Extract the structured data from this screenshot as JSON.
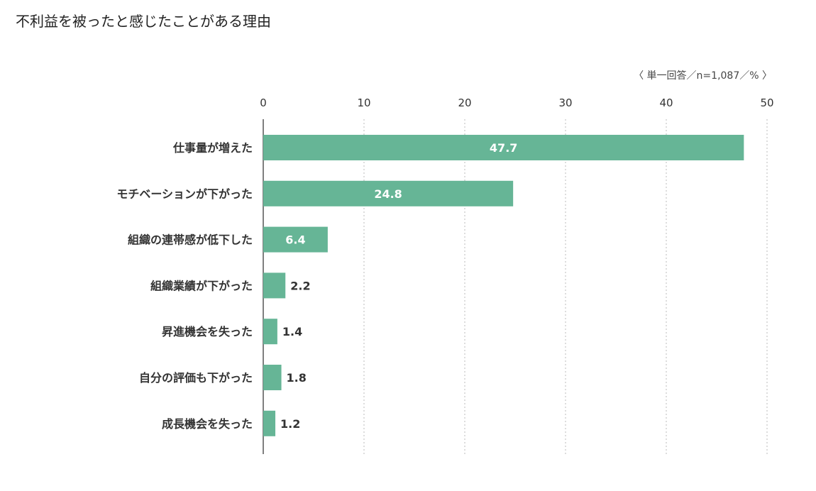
{
  "title": "不利益を被ったと感じたことがある理由",
  "note": "〈 単一回答／n=1,087／% 〉",
  "colors": {
    "bar": "#66b596",
    "value_inside": "#ffffff",
    "value_outside": "#333333",
    "grid": "#bbbbbb",
    "axis": "#555555",
    "text": "#333333"
  },
  "chart_data": {
    "type": "bar",
    "orientation": "horizontal",
    "categories": [
      "仕事量が増えた",
      "モチベーションが下がった",
      "組織の連帯感が低下した",
      "組織業績が下がった",
      "昇進機会を失った",
      "自分の評価も下がった",
      "成長機会を失った"
    ],
    "values": [
      47.7,
      24.8,
      6.4,
      2.2,
      1.4,
      1.8,
      1.2
    ],
    "value_labels": [
      "47.7",
      "24.8",
      "6.4",
      "2.2",
      "1.4",
      "1.8",
      "1.2"
    ],
    "xlim": [
      0,
      50
    ],
    "ticks": [
      0,
      10,
      20,
      30,
      40,
      50
    ],
    "tick_labels": [
      "0",
      "10",
      "20",
      "30",
      "40",
      "50"
    ],
    "grid": true,
    "grid_style": "dotted",
    "xlabel": "",
    "ylabel": ""
  }
}
